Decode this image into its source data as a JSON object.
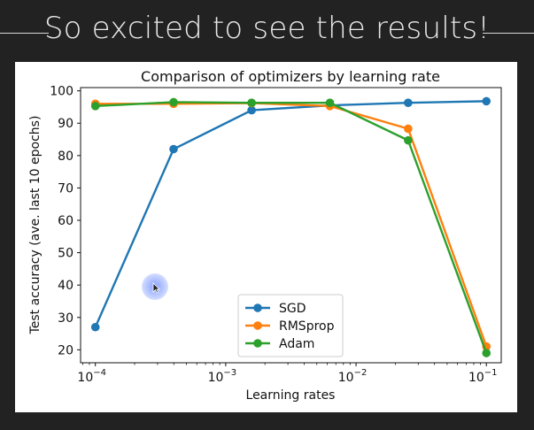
{
  "banner": {
    "headline": "So excited to see the results!"
  },
  "colors": {
    "sgd": "#1f77b4",
    "rmsprop": "#ff7f0e",
    "adam": "#2ca02c",
    "frame": "#222222"
  },
  "cursor": {
    "icon": "pointer-cursor-icon"
  },
  "chart_data": {
    "type": "line",
    "title": "Comparison of optimizers by learning rate",
    "xlabel": "Learning rates",
    "ylabel": "Test accuracy (ave. last 10 epochs)",
    "xscale": "log",
    "xlim": [
      7.7e-05,
      0.13
    ],
    "ylim": [
      16,
      101
    ],
    "x": [
      0.0001,
      0.000398,
      0.00158,
      0.0063,
      0.0251,
      0.1
    ],
    "x_ticks": [
      {
        "value": 0.0001,
        "base": "10",
        "exp": "−4"
      },
      {
        "value": 0.001,
        "base": "10",
        "exp": "−3"
      },
      {
        "value": 0.01,
        "base": "10",
        "exp": "−2"
      },
      {
        "value": 0.1,
        "base": "10",
        "exp": "−1"
      }
    ],
    "y_ticks": [
      "20",
      "30",
      "40",
      "50",
      "60",
      "70",
      "80",
      "90",
      "100"
    ],
    "series": [
      {
        "name": "SGD",
        "values": [
          27,
          82,
          94,
          95.5,
          96.3,
          96.8
        ]
      },
      {
        "name": "RMSprop",
        "values": [
          96,
          96,
          96.2,
          95.3,
          88.3,
          21
        ]
      },
      {
        "name": "Adam",
        "values": [
          95.3,
          96.5,
          96.3,
          96.3,
          84.7,
          19
        ]
      }
    ],
    "legend": {
      "position": "lower-center",
      "entries": [
        "SGD",
        "RMSprop",
        "Adam"
      ]
    },
    "grid": false
  }
}
